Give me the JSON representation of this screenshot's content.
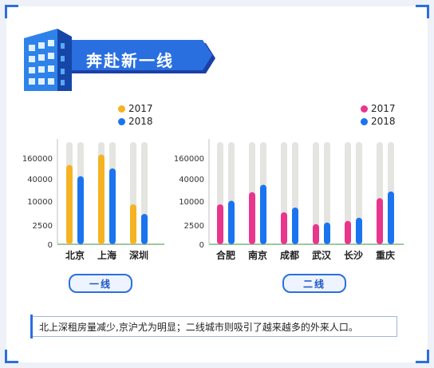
{
  "title": "奔赴新一线",
  "colors": {
    "accent": "#2a6fe0",
    "c2017_tier1": "#f5b323",
    "c2017_tier2": "#e8358d",
    "c2018": "#1a74f0",
    "track": "#e4e4e0"
  },
  "legend_left": {
    "a": "2017",
    "b": "2018"
  },
  "legend_right": {
    "a": "2017",
    "b": "2018"
  },
  "tier1_label": "一线",
  "tier2_label": "二线",
  "caption": "北上深租房量减少,京沪尤为明显；二线城市则吸引了越来越多的外来人口。",
  "chart_data": [
    {
      "type": "bar",
      "title": "",
      "categories": [
        "北京",
        "上海",
        "深圳"
      ],
      "series": [
        {
          "name": "2017",
          "values": [
            120000,
            180000,
            9000
          ]
        },
        {
          "name": "2018",
          "values": [
            55000,
            100000,
            6000
          ]
        }
      ],
      "y_ticks": [
        "0",
        "2500",
        "10000",
        "40000",
        "160000"
      ],
      "y_tick_values": [
        0,
        2500,
        10000,
        40000,
        160000
      ],
      "scale": "sqrt",
      "legend": "top-right"
    },
    {
      "type": "bar",
      "title": "",
      "categories": [
        "合肥",
        "南京",
        "成都",
        "武汉",
        "长沙",
        "重庆"
      ],
      "series": [
        {
          "name": "2017",
          "values": [
            9000,
            22000,
            6500,
            2800,
            3800,
            14000
          ]
        },
        {
          "name": "2018",
          "values": [
            10500,
            32000,
            8000,
            3300,
            4800,
            23000
          ]
        }
      ],
      "y_ticks": [
        "0",
        "2500",
        "10000",
        "40000",
        "160000"
      ],
      "y_tick_values": [
        0,
        2500,
        10000,
        40000,
        160000
      ],
      "scale": "sqrt",
      "legend": "top-right"
    }
  ]
}
